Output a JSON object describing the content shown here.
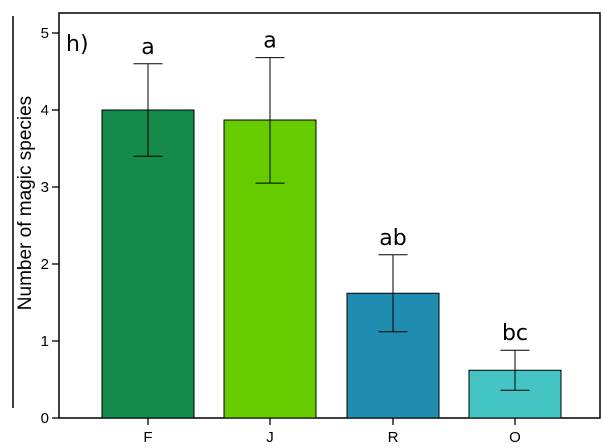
{
  "chart_data": {
    "type": "bar",
    "panel_label": "h)",
    "ylabel": "Number of magic species",
    "xlabel": "",
    "categories": [
      "F",
      "J",
      "R",
      "O"
    ],
    "values": [
      4.0,
      3.87,
      1.62,
      0.62
    ],
    "error_low": [
      3.4,
      3.05,
      1.12,
      0.36
    ],
    "error_high": [
      4.6,
      4.68,
      2.12,
      0.88
    ],
    "significance_labels": [
      "a",
      "a",
      "ab",
      "bc"
    ],
    "bar_colors": [
      "#168a4a",
      "#66cc00",
      "#1f8cb0",
      "#45c4c4"
    ],
    "ylim": [
      0,
      5
    ],
    "yticks": [
      0,
      1,
      2,
      3,
      4,
      5
    ],
    "grid": false,
    "legend": "none"
  }
}
